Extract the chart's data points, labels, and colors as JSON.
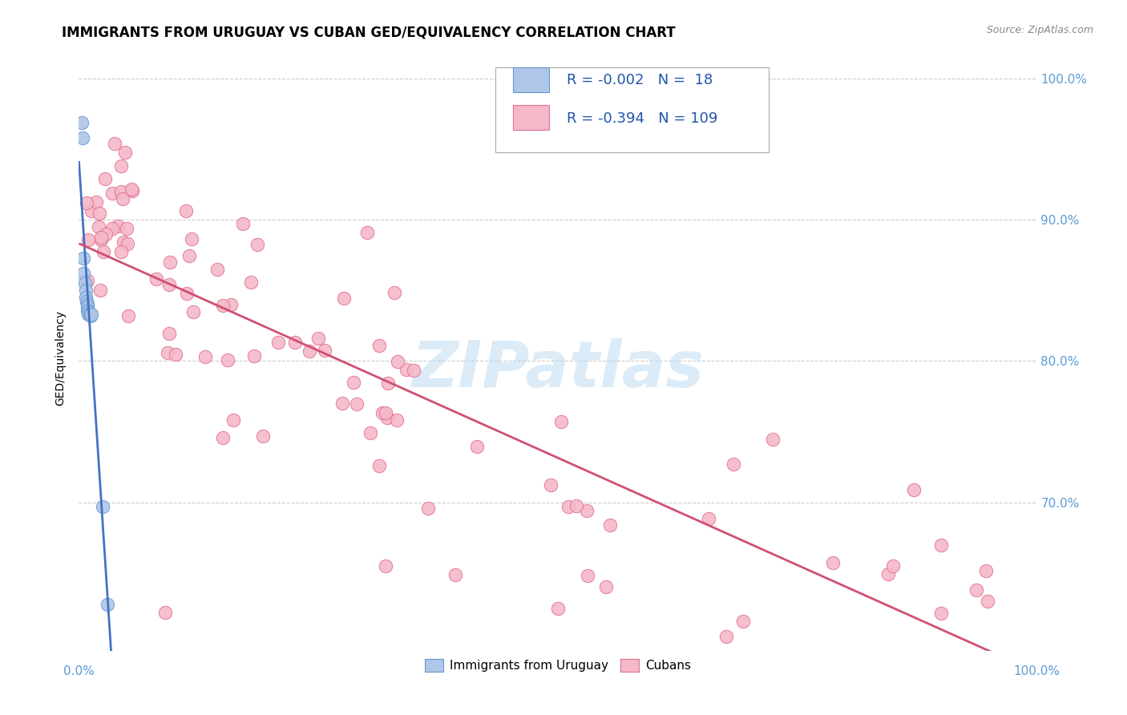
{
  "title": "IMMIGRANTS FROM URUGUAY VS CUBAN GED/EQUIVALENCY CORRELATION CHART",
  "source": "Source: ZipAtlas.com",
  "ylabel": "GED/Equivalency",
  "legend_labels": [
    "Immigrants from Uruguay",
    "Cubans"
  ],
  "uruguay_R": "-0.002",
  "uruguay_N": "18",
  "cuban_R": "-0.394",
  "cuban_N": "109",
  "uruguay_color": "#aec6e8",
  "cuban_color": "#f5b8c8",
  "uruguay_edge_color": "#6699cc",
  "cuban_edge_color": "#e07090",
  "uruguay_line_color": "#4472c4",
  "cuban_line_color": "#d05070",
  "background_color": "#ffffff",
  "grid_color": "#cccccc",
  "right_axis_color": "#5b9bd5",
  "xlim": [
    0.0,
    1.0
  ],
  "ylim": [
    0.595,
    1.01
  ],
  "watermark": "ZIPatlas",
  "title_fontsize": 12,
  "axis_label_fontsize": 10,
  "stats_fontsize": 13,
  "legend_text_color": "#2255aa",
  "legend_box_color_uruguay": "#aec6e8",
  "legend_box_color_cuban": "#f5b8c8",
  "legend_box_edge_uruguay": "#6699cc",
  "legend_box_edge_cuban": "#e07090"
}
